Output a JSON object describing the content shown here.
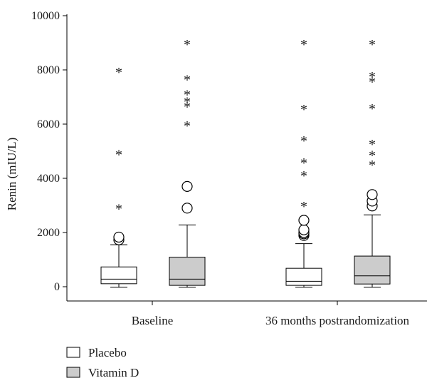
{
  "chart_data": {
    "type": "box",
    "ylabel": "Renin (mIU/L)",
    "ylim": [
      0,
      10000
    ],
    "yticks": [
      0,
      2000,
      4000,
      6000,
      8000,
      10000
    ],
    "categories": [
      "Baseline",
      "36 months postrandomization"
    ],
    "legend_position": "bottom-left",
    "series": [
      {
        "name": "Placebo",
        "color": "#ffffff",
        "boxes": [
          {
            "whisker_low": -20,
            "q1": 110,
            "median": 280,
            "q3": 730,
            "whisker_high": 1550,
            "outliers_circle": [
              1730,
              1830
            ],
            "outliers_star": [
              2960,
              4960,
              8000
            ]
          },
          {
            "whisker_low": -20,
            "q1": 50,
            "median": 200,
            "q3": 680,
            "whisker_high": 1590,
            "outliers_circle": [
              1890,
              1950,
              2000,
              2100,
              2450
            ],
            "outliers_star": [
              3050,
              4180,
              4660,
              5480,
              6630,
              9030
            ]
          }
        ]
      },
      {
        "name": "Vitamin D",
        "color": "#cccccc",
        "boxes": [
          {
            "whisker_low": -20,
            "q1": 50,
            "median": 280,
            "q3": 1090,
            "whisker_high": 2280,
            "outliers_circle": [
              2900,
              3700
            ],
            "outliers_star": [
              6030,
              6730,
              6910,
              7170,
              7720,
              9030
            ]
          },
          {
            "whisker_low": -20,
            "q1": 100,
            "median": 400,
            "q3": 1130,
            "whisker_high": 2650,
            "outliers_circle": [
              2980,
              3160,
              3400
            ],
            "outliers_star": [
              4580,
              4940,
              5340,
              6660,
              7640,
              7840,
              9030
            ]
          }
        ]
      }
    ]
  }
}
